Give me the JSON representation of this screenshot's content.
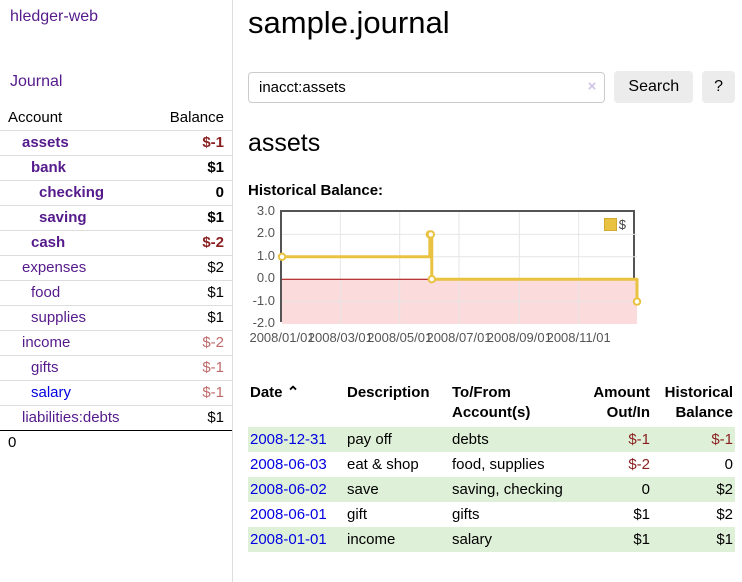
{
  "app": {
    "brand": "hledger-web",
    "nav_journal": "Journal"
  },
  "sidebar": {
    "header": {
      "account": "Account",
      "balance": "Balance"
    },
    "accounts": [
      {
        "name": "assets",
        "balance": "$-1"
      },
      {
        "name": "bank",
        "balance": "$1"
      },
      {
        "name": "checking",
        "balance": "0"
      },
      {
        "name": "saving",
        "balance": "$1"
      },
      {
        "name": "cash",
        "balance": "$-2"
      },
      {
        "name": "expenses",
        "balance": "$2"
      },
      {
        "name": "food",
        "balance": "$1"
      },
      {
        "name": "supplies",
        "balance": "$1"
      },
      {
        "name": "income",
        "balance": "$-2"
      },
      {
        "name": "gifts",
        "balance": "$-1"
      },
      {
        "name": "salary",
        "balance": "$-1"
      },
      {
        "name": "liabilities:debts",
        "balance": "$1"
      }
    ],
    "total": "0"
  },
  "main": {
    "title": "sample.journal",
    "search": {
      "query": "inacct:assets",
      "clear_icon": "×",
      "search_label": "Search",
      "help_label": "?"
    },
    "account_heading": "assets",
    "chart_heading": "Historical Balance:"
  },
  "chart_data": {
    "type": "line",
    "title": "Historical Balance:",
    "step": true,
    "series": [
      {
        "name": "$",
        "color": "#e8c240",
        "points": [
          {
            "x": "2008-01-01",
            "y": 1
          },
          {
            "x": "2008-06-01",
            "y": 2
          },
          {
            "x": "2008-06-02",
            "y": 2
          },
          {
            "x": "2008-06-03",
            "y": 0
          },
          {
            "x": "2008-12-31",
            "y": -1
          }
        ]
      }
    ],
    "xlim": [
      "2008-01-01",
      "2008-12-31"
    ],
    "ylim": [
      -2,
      3
    ],
    "x_ticks": [
      "2008/01/01",
      "2008/03/01",
      "2008/05/01",
      "2008/07/01",
      "2008/09/01",
      "2008/11/01"
    ],
    "y_ticks": [
      "3.0",
      "2.0",
      "1.0",
      "0.0",
      "-1.0",
      "-2.0"
    ],
    "y_grid": [
      2,
      1,
      -1
    ],
    "legend": "$",
    "legend_position": "top-right",
    "grid": true,
    "negative_fill": "#fbdbdb",
    "zero_line_color": "#a40000",
    "border_color": "#545454"
  },
  "register": {
    "columns": {
      "date": "Date",
      "sort_icon": "⌃",
      "description": "Description",
      "accounts": "To/From Account(s)",
      "amount": "Amount Out/In",
      "balance": "Historical Balance"
    },
    "rows": [
      {
        "date": "2008-12-31",
        "description": "pay off",
        "accounts": "debts",
        "amount": "$-1",
        "balance": "$-1"
      },
      {
        "date": "2008-06-03",
        "description": "eat & shop",
        "accounts": "food, supplies",
        "amount": "$-2",
        "balance": "0"
      },
      {
        "date": "2008-06-02",
        "description": "save",
        "accounts": "saving, checking",
        "amount": "0",
        "balance": "$2"
      },
      {
        "date": "2008-06-01",
        "description": "gift",
        "accounts": "gifts",
        "amount": "$1",
        "balance": "$2"
      },
      {
        "date": "2008-01-01",
        "description": "income",
        "accounts": "salary",
        "amount": "$1",
        "balance": "$1"
      }
    ]
  }
}
